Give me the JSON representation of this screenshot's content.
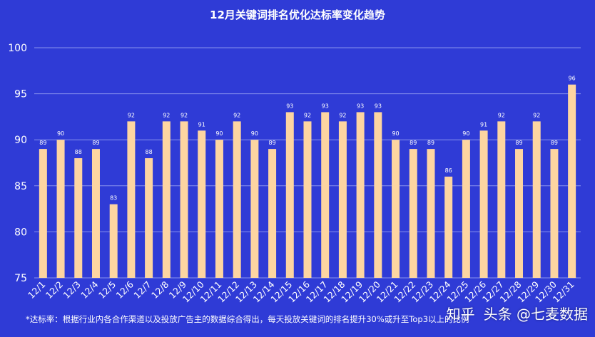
{
  "chart_data": {
    "type": "bar",
    "title": "12月关键词排名优化达标率变化趋势",
    "xlabel": "",
    "ylabel": "",
    "ylim": [
      75,
      100
    ],
    "yticks": [
      75,
      80,
      85,
      90,
      95,
      100
    ],
    "grid": true,
    "categories": [
      "12/1",
      "12/2",
      "12/3",
      "12/4",
      "12/5",
      "12/6",
      "12/7",
      "12/8",
      "12/9",
      "12/10",
      "12/11",
      "12/12",
      "12/13",
      "12/14",
      "12/15",
      "12/16",
      "12/17",
      "12/18",
      "12/19",
      "12/20",
      "12/21",
      "12/22",
      "12/23",
      "12/24",
      "12/25",
      "12/26",
      "12/27",
      "12/28",
      "12/29",
      "12/30",
      "12/31"
    ],
    "values": [
      89,
      90,
      88,
      89,
      83,
      92,
      88,
      92,
      92,
      91,
      90,
      92,
      90,
      89,
      93,
      92,
      93,
      92,
      93,
      93,
      90,
      89,
      89,
      86,
      90,
      91,
      92,
      89,
      92,
      89,
      96
    ],
    "bar_color": "#fdd5a1",
    "background_color": "#2f3bd6"
  },
  "footnote": "*达标率：根据行业内各合作渠道以及投放广告主的数据综合得出，每天投放关键词的排名提升30%或升至Top3以上的比例",
  "watermark": {
    "platform": "知乎",
    "author": "头条 @七麦数据"
  }
}
